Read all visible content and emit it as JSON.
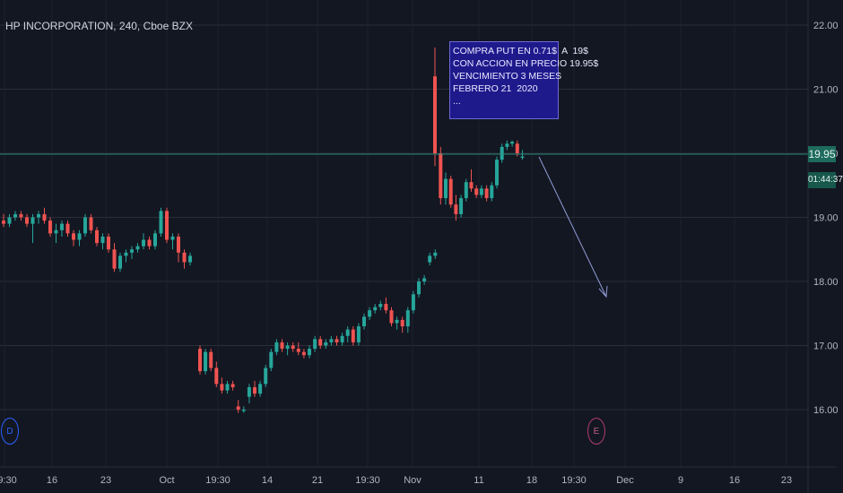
{
  "header": {
    "symbol_title": "HP INCORPORATION, 240, Cboe BZX"
  },
  "note": {
    "text": "COMPRA PUT EN 0.71$  A  19$\nCON ACCION EN PRECIO 19.95$\nVENCIMIENTO 3 MESES\nFEBRERO 21  2020\n..."
  },
  "price_axis": {
    "ticks": [
      "22.00",
      "21.00",
      "20.00",
      "19.00",
      "18.00",
      "17.00",
      "16.00"
    ],
    "last_price": "19.95",
    "countdown": "01:44:37"
  },
  "time_axis": {
    "ticks": [
      "19:30",
      "16",
      "23",
      "Oct",
      "19:30",
      "14",
      "21",
      "19:30",
      "Nov",
      "11",
      "18",
      "19:30",
      "Dec",
      "9",
      "16",
      "23"
    ]
  },
  "markers": {
    "dividend": "D",
    "earnings": "E"
  },
  "colors": {
    "up": "#26a69a",
    "down": "#ef5350",
    "bg": "#131722",
    "grid": "#2a2e39",
    "note_bg": "#1f1a8c",
    "arrow": "#8f9bd4"
  },
  "chart_data": {
    "type": "candlestick",
    "title": "HP INCORPORATION, 240, Cboe BZX",
    "ylim": [
      15.5,
      22.3
    ],
    "last_price": 19.95,
    "candles": [
      {
        "o": 18.95,
        "h": 19.05,
        "l": 18.85,
        "c": 18.9
      },
      {
        "o": 18.9,
        "h": 19.05,
        "l": 18.85,
        "c": 19.0
      },
      {
        "o": 19.0,
        "h": 19.1,
        "l": 18.95,
        "c": 19.05
      },
      {
        "o": 19.05,
        "h": 19.1,
        "l": 18.95,
        "c": 19.0
      },
      {
        "o": 19.0,
        "h": 19.05,
        "l": 18.85,
        "c": 18.9
      },
      {
        "o": 18.9,
        "h": 19.05,
        "l": 18.6,
        "c": 19.0
      },
      {
        "o": 19.0,
        "h": 19.1,
        "l": 18.9,
        "c": 19.05
      },
      {
        "o": 19.05,
        "h": 19.15,
        "l": 18.9,
        "c": 18.95
      },
      {
        "o": 18.95,
        "h": 19.0,
        "l": 18.7,
        "c": 18.75
      },
      {
        "o": 18.75,
        "h": 18.9,
        "l": 18.6,
        "c": 18.8
      },
      {
        "o": 18.8,
        "h": 18.95,
        "l": 18.7,
        "c": 18.9
      },
      {
        "o": 18.9,
        "h": 18.95,
        "l": 18.7,
        "c": 18.75
      },
      {
        "o": 18.75,
        "h": 18.8,
        "l": 18.55,
        "c": 18.65
      },
      {
        "o": 18.65,
        "h": 18.8,
        "l": 18.55,
        "c": 18.75
      },
      {
        "o": 18.75,
        "h": 19.05,
        "l": 18.7,
        "c": 19.0
      },
      {
        "o": 19.0,
        "h": 19.05,
        "l": 18.75,
        "c": 18.8
      },
      {
        "o": 18.8,
        "h": 18.85,
        "l": 18.55,
        "c": 18.6
      },
      {
        "o": 18.6,
        "h": 18.75,
        "l": 18.5,
        "c": 18.7
      },
      {
        "o": 18.7,
        "h": 18.75,
        "l": 18.45,
        "c": 18.5
      },
      {
        "o": 18.5,
        "h": 18.6,
        "l": 18.15,
        "c": 18.2
      },
      {
        "o": 18.2,
        "h": 18.45,
        "l": 18.15,
        "c": 18.4
      },
      {
        "o": 18.4,
        "h": 18.5,
        "l": 18.3,
        "c": 18.45
      },
      {
        "o": 18.45,
        "h": 18.55,
        "l": 18.35,
        "c": 18.5
      },
      {
        "o": 18.5,
        "h": 18.6,
        "l": 18.45,
        "c": 18.55
      },
      {
        "o": 18.55,
        "h": 18.75,
        "l": 18.5,
        "c": 18.65
      },
      {
        "o": 18.65,
        "h": 18.7,
        "l": 18.5,
        "c": 18.55
      },
      {
        "o": 18.55,
        "h": 18.8,
        "l": 18.5,
        "c": 18.75
      },
      {
        "o": 18.75,
        "h": 19.15,
        "l": 18.7,
        "c": 19.1
      },
      {
        "o": 19.1,
        "h": 19.15,
        "l": 18.6,
        "c": 18.65
      },
      {
        "o": 18.65,
        "h": 18.75,
        "l": 18.5,
        "c": 18.7
      },
      {
        "o": 18.7,
        "h": 18.75,
        "l": 18.3,
        "c": 18.45
      },
      {
        "o": 18.45,
        "h": 18.5,
        "l": 18.2,
        "c": 18.3
      },
      {
        "o": 18.3,
        "h": 18.45,
        "l": 18.25,
        "c": 18.4
      },
      {
        "o": 16.95,
        "h": 17.0,
        "l": 16.55,
        "c": 16.6
      },
      {
        "o": 16.6,
        "h": 16.95,
        "l": 16.55,
        "c": 16.9
      },
      {
        "o": 16.9,
        "h": 16.95,
        "l": 16.6,
        "c": 16.65
      },
      {
        "o": 16.65,
        "h": 16.75,
        "l": 16.35,
        "c": 16.4
      },
      {
        "o": 16.4,
        "h": 16.5,
        "l": 16.25,
        "c": 16.3
      },
      {
        "o": 16.3,
        "h": 16.45,
        "l": 16.25,
        "c": 16.4
      },
      {
        "o": 16.4,
        "h": 16.45,
        "l": 16.3,
        "c": 16.35
      },
      {
        "o": 16.05,
        "h": 16.15,
        "l": 15.95,
        "c": 16.0
      },
      {
        "o": 16.0,
        "h": 16.05,
        "l": 15.95,
        "c": 16.0
      },
      {
        "o": 16.2,
        "h": 16.4,
        "l": 16.1,
        "c": 16.35
      },
      {
        "o": 16.35,
        "h": 16.45,
        "l": 16.2,
        "c": 16.25
      },
      {
        "o": 16.25,
        "h": 16.45,
        "l": 16.2,
        "c": 16.4
      },
      {
        "o": 16.4,
        "h": 16.7,
        "l": 16.35,
        "c": 16.65
      },
      {
        "o": 16.65,
        "h": 16.95,
        "l": 16.6,
        "c": 16.9
      },
      {
        "o": 16.9,
        "h": 17.1,
        "l": 16.85,
        "c": 17.05
      },
      {
        "o": 17.05,
        "h": 17.1,
        "l": 16.9,
        "c": 16.95
      },
      {
        "o": 16.95,
        "h": 17.05,
        "l": 16.85,
        "c": 17.0
      },
      {
        "o": 17.0,
        "h": 17.05,
        "l": 16.9,
        "c": 16.95
      },
      {
        "o": 16.95,
        "h": 17.05,
        "l": 16.85,
        "c": 16.9
      },
      {
        "o": 16.9,
        "h": 16.95,
        "l": 16.8,
        "c": 16.85
      },
      {
        "o": 16.85,
        "h": 17.0,
        "l": 16.8,
        "c": 16.95
      },
      {
        "o": 16.95,
        "h": 17.15,
        "l": 16.9,
        "c": 17.1
      },
      {
        "o": 17.1,
        "h": 17.15,
        "l": 16.95,
        "c": 17.0
      },
      {
        "o": 17.0,
        "h": 17.1,
        "l": 16.95,
        "c": 17.05
      },
      {
        "o": 17.05,
        "h": 17.15,
        "l": 17.0,
        "c": 17.1
      },
      {
        "o": 17.1,
        "h": 17.15,
        "l": 17.0,
        "c": 17.05
      },
      {
        "o": 17.05,
        "h": 17.2,
        "l": 17.0,
        "c": 17.15
      },
      {
        "o": 17.15,
        "h": 17.3,
        "l": 17.05,
        "c": 17.25
      },
      {
        "o": 17.25,
        "h": 17.3,
        "l": 17.0,
        "c": 17.05
      },
      {
        "o": 17.05,
        "h": 17.35,
        "l": 17.0,
        "c": 17.3
      },
      {
        "o": 17.3,
        "h": 17.5,
        "l": 17.25,
        "c": 17.45
      },
      {
        "o": 17.45,
        "h": 17.6,
        "l": 17.4,
        "c": 17.55
      },
      {
        "o": 17.55,
        "h": 17.65,
        "l": 17.5,
        "c": 17.6
      },
      {
        "o": 17.6,
        "h": 17.7,
        "l": 17.55,
        "c": 17.65
      },
      {
        "o": 17.65,
        "h": 17.75,
        "l": 17.5,
        "c": 17.55
      },
      {
        "o": 17.55,
        "h": 17.6,
        "l": 17.3,
        "c": 17.35
      },
      {
        "o": 17.35,
        "h": 17.45,
        "l": 17.25,
        "c": 17.4
      },
      {
        "o": 17.4,
        "h": 17.45,
        "l": 17.2,
        "c": 17.3
      },
      {
        "o": 17.3,
        "h": 17.6,
        "l": 17.2,
        "c": 17.55
      },
      {
        "o": 17.55,
        "h": 17.85,
        "l": 17.5,
        "c": 17.8
      },
      {
        "o": 17.8,
        "h": 18.05,
        "l": 17.75,
        "c": 18.0
      },
      {
        "o": 18.0,
        "h": 18.1,
        "l": 17.95,
        "c": 18.05
      },
      {
        "o": 18.3,
        "h": 18.45,
        "l": 18.25,
        "c": 18.4
      },
      {
        "o": 18.4,
        "h": 18.5,
        "l": 18.35,
        "c": 18.45
      },
      {
        "o": 21.2,
        "h": 21.65,
        "l": 19.8,
        "c": 20.0
      },
      {
        "o": 20.0,
        "h": 20.1,
        "l": 19.2,
        "c": 19.3
      },
      {
        "o": 19.3,
        "h": 19.7,
        "l": 19.2,
        "c": 19.6
      },
      {
        "o": 19.6,
        "h": 19.65,
        "l": 19.15,
        "c": 19.2
      },
      {
        "o": 19.2,
        "h": 19.35,
        "l": 18.95,
        "c": 19.05
      },
      {
        "o": 19.05,
        "h": 19.35,
        "l": 19.0,
        "c": 19.3
      },
      {
        "o": 19.3,
        "h": 19.6,
        "l": 19.25,
        "c": 19.55
      },
      {
        "o": 19.55,
        "h": 19.75,
        "l": 19.4,
        "c": 19.45
      },
      {
        "o": 19.45,
        "h": 19.5,
        "l": 19.3,
        "c": 19.35
      },
      {
        "o": 19.35,
        "h": 19.5,
        "l": 19.3,
        "c": 19.45
      },
      {
        "o": 19.45,
        "h": 19.5,
        "l": 19.25,
        "c": 19.3
      },
      {
        "o": 19.3,
        "h": 19.55,
        "l": 19.25,
        "c": 19.5
      },
      {
        "o": 19.5,
        "h": 19.95,
        "l": 19.45,
        "c": 19.9
      },
      {
        "o": 19.9,
        "h": 20.15,
        "l": 19.85,
        "c": 20.1
      },
      {
        "o": 20.1,
        "h": 20.2,
        "l": 20.05,
        "c": 20.15
      },
      {
        "o": 20.15,
        "h": 20.2,
        "l": 20.1,
        "c": 20.18
      },
      {
        "o": 20.15,
        "h": 20.2,
        "l": 19.95,
        "c": 20.0
      },
      {
        "o": 19.95,
        "h": 20.05,
        "l": 19.9,
        "c": 19.95
      }
    ]
  }
}
